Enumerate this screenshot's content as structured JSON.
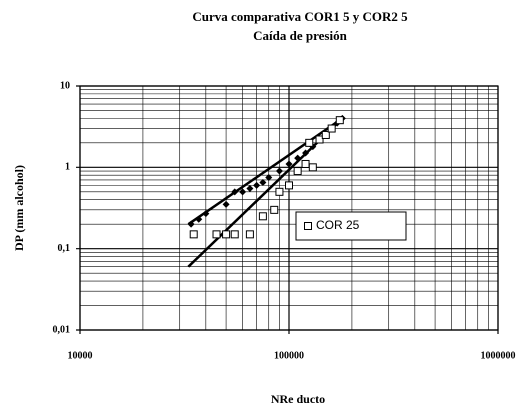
{
  "chart_data": {
    "type": "scatter",
    "title": "Curva comparativa COR1 5 y COR2 5",
    "subtitle": "Caída de presión",
    "x_label": "NRe ducto",
    "y_label": "DP (mm alcohol)",
    "xlog": true,
    "ylog": true,
    "grid": true,
    "minor_grid": true,
    "xlim": [
      10000,
      1000000
    ],
    "xticks": [
      10000,
      100000,
      1000000
    ],
    "ylim": [
      0.01,
      10
    ],
    "yticks": [
      {
        "value": 0.01,
        "label": "0,01"
      },
      {
        "value": 0.1,
        "label": "0,1"
      },
      1,
      10
    ],
    "legend": "center",
    "series": [
      {
        "color": "#000000",
        "marker": "diamond",
        "legend": false,
        "x": [
          34000,
          37000,
          40000,
          50000,
          55000,
          60000,
          65000,
          70000,
          75000,
          80000,
          90000,
          100000,
          110000,
          120000,
          130000,
          140000,
          150000,
          160000,
          170000,
          180000
        ],
        "values": [
          0.2,
          0.23,
          0.27,
          0.35,
          0.5,
          0.5,
          0.55,
          0.6,
          0.65,
          0.75,
          0.9,
          1.1,
          1.3,
          1.5,
          1.8,
          2.2,
          2.6,
          3,
          3.5,
          4
        ]
      },
      {
        "name": "COR 25",
        "color": "#000000",
        "marker": "square",
        "legend": true,
        "x": [
          35000,
          45000,
          50000,
          55000,
          65000,
          75000,
          85000,
          90000,
          100000,
          110000,
          120000,
          125000,
          130000,
          140000,
          150000,
          160000,
          175000
        ],
        "values": [
          0.15,
          0.15,
          0.15,
          0.15,
          0.15,
          0.25,
          0.3,
          0.5,
          0.6,
          0.9,
          1.1,
          2,
          1,
          2.2,
          2.5,
          3,
          3.8
        ]
      }
    ],
    "trendlines": [
      {
        "color": "#000000",
        "x": [
          33000,
          180000
        ],
        "values": [
          0.2,
          4
        ]
      },
      {
        "color": "#000000",
        "x": [
          33000,
          180000
        ],
        "values": [
          0.06,
          4
        ]
      }
    ]
  }
}
